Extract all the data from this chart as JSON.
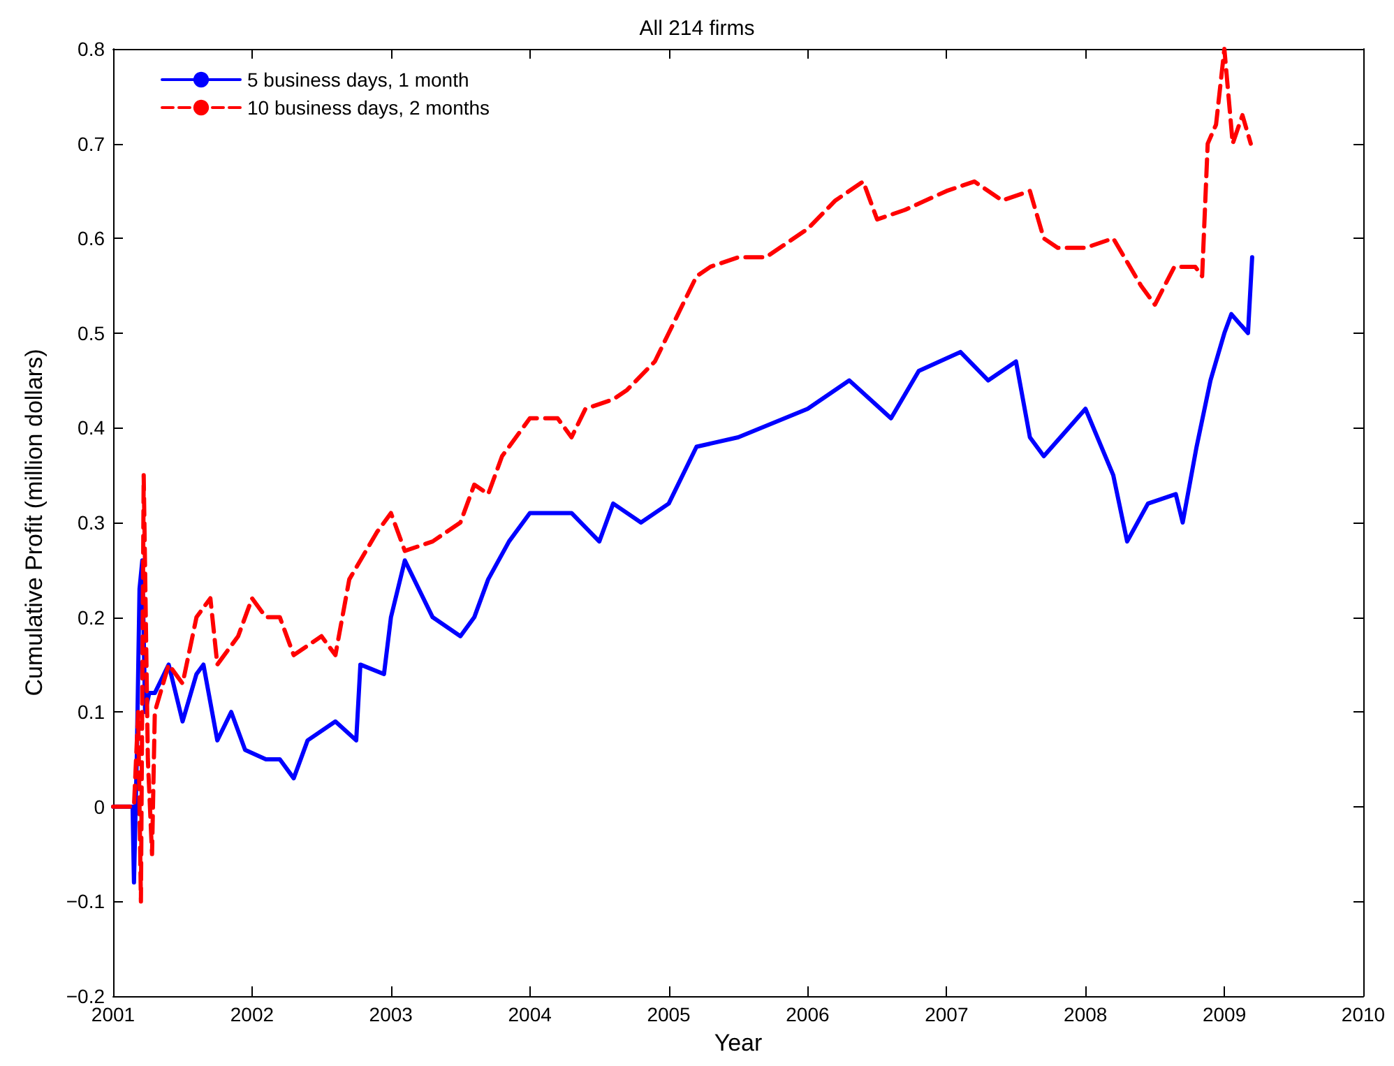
{
  "chart_data": {
    "type": "line",
    "title": "All 214 firms",
    "xlabel": "Year",
    "ylabel": "Cumulative Profit (million dollars)",
    "xlim": [
      2001,
      2010
    ],
    "xticks": [
      2001,
      2002,
      2003,
      2004,
      2005,
      2006,
      2007,
      2008,
      2009,
      2010
    ],
    "ylim": [
      -0.2,
      0.8
    ],
    "yticks": [
      {
        "value": -0.2,
        "label": "−0.2"
      },
      {
        "value": -0.1,
        "label": "−0.1"
      },
      0,
      0.1,
      0.2,
      0.3,
      0.4,
      0.5,
      0.6,
      0.7,
      0.8
    ],
    "grid": false,
    "legend": "top left",
    "marker": "none",
    "series": [
      {
        "name": "5 business days, 1 month",
        "color": "#0000ff",
        "line_style": "solid",
        "x": [
          2001.0,
          2001.14,
          2001.15,
          2001.17,
          2001.19,
          2001.21,
          2001.23,
          2001.26,
          2001.3,
          2001.4,
          2001.5,
          2001.6,
          2001.65,
          2001.75,
          2001.85,
          2001.95,
          2002.1,
          2002.2,
          2002.3,
          2002.4,
          2002.6,
          2002.75,
          2002.78,
          2002.95,
          2003.0,
          2003.1,
          2003.3,
          2003.5,
          2003.6,
          2003.7,
          2003.85,
          2004.0,
          2004.1,
          2004.3,
          2004.5,
          2004.6,
          2004.8,
          2005.0,
          2005.2,
          2005.5,
          2006.0,
          2006.3,
          2006.6,
          2006.8,
          2007.1,
          2007.3,
          2007.5,
          2007.6,
          2007.7,
          2008.0,
          2008.2,
          2008.3,
          2008.45,
          2008.65,
          2008.7,
          2008.8,
          2008.9,
          2009.0,
          2009.05,
          2009.17,
          2009.2
        ],
        "values": [
          0,
          0,
          -0.08,
          0.05,
          0.23,
          0.26,
          0.1,
          0.12,
          0.12,
          0.15,
          0.09,
          0.14,
          0.15,
          0.07,
          0.1,
          0.06,
          0.05,
          0.05,
          0.03,
          0.07,
          0.09,
          0.07,
          0.15,
          0.14,
          0.2,
          0.26,
          0.2,
          0.18,
          0.2,
          0.24,
          0.28,
          0.31,
          0.31,
          0.31,
          0.28,
          0.32,
          0.3,
          0.32,
          0.38,
          0.39,
          0.42,
          0.45,
          0.41,
          0.46,
          0.48,
          0.45,
          0.47,
          0.39,
          0.37,
          0.42,
          0.35,
          0.28,
          0.32,
          0.33,
          0.3,
          0.38,
          0.45,
          0.5,
          0.52,
          0.5,
          0.58
        ]
      },
      {
        "name": "10 business days, 2 months",
        "color": "#ff0000",
        "line_style": "dashed",
        "x": [
          2001.0,
          2001.15,
          2001.18,
          2001.2,
          2001.22,
          2001.25,
          2001.28,
          2001.3,
          2001.4,
          2001.5,
          2001.6,
          2001.7,
          2001.75,
          2001.9,
          2002.0,
          2002.1,
          2002.2,
          2002.3,
          2002.5,
          2002.6,
          2002.7,
          2002.9,
          2003.0,
          2003.1,
          2003.3,
          2003.5,
          2003.6,
          2003.7,
          2003.8,
          2004.0,
          2004.2,
          2004.3,
          2004.4,
          2004.6,
          2004.7,
          2004.9,
          2005.0,
          2005.2,
          2005.3,
          2005.5,
          2005.7,
          2006.0,
          2006.2,
          2006.4,
          2006.5,
          2006.7,
          2007.0,
          2007.2,
          2007.4,
          2007.6,
          2007.7,
          2007.8,
          2008.0,
          2008.2,
          2008.4,
          2008.5,
          2008.64,
          2008.79,
          2008.84,
          2008.88,
          2008.94,
          2009.0,
          2009.06,
          2009.13,
          2009.19
        ],
        "values": [
          0,
          0,
          0.1,
          -0.1,
          0.35,
          0.05,
          -0.05,
          0.1,
          0.15,
          0.13,
          0.2,
          0.22,
          0.15,
          0.18,
          0.22,
          0.2,
          0.2,
          0.16,
          0.18,
          0.16,
          0.24,
          0.29,
          0.31,
          0.27,
          0.28,
          0.3,
          0.34,
          0.33,
          0.37,
          0.41,
          0.41,
          0.39,
          0.42,
          0.43,
          0.44,
          0.47,
          0.5,
          0.56,
          0.57,
          0.58,
          0.58,
          0.61,
          0.64,
          0.66,
          0.62,
          0.63,
          0.65,
          0.66,
          0.64,
          0.65,
          0.6,
          0.59,
          0.59,
          0.6,
          0.55,
          0.53,
          0.57,
          0.57,
          0.56,
          0.7,
          0.72,
          0.8,
          0.7,
          0.73,
          0.7
        ]
      }
    ]
  }
}
